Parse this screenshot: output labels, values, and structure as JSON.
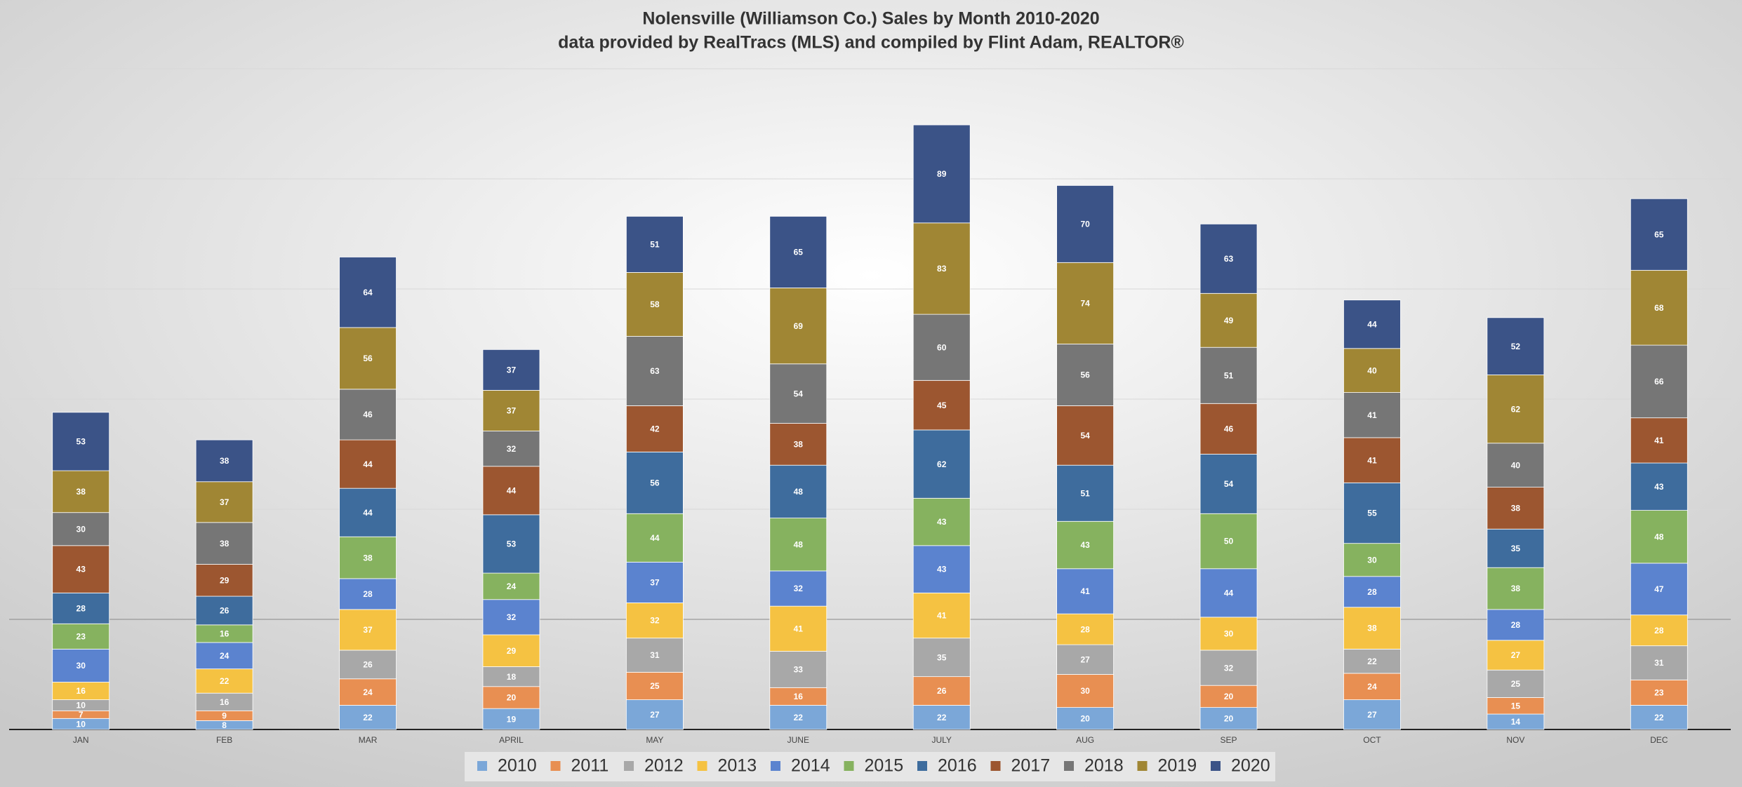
{
  "chart_data": {
    "type": "stacked_bar",
    "title": "Nolensville (Williamson Co.) Sales by Month 2010-2020",
    "subtitle": "data provided by RealTracs (MLS) and compiled by Flint Adam, REALTOR®",
    "categories": [
      "JAN",
      "FEB",
      "MAR",
      "APRIL",
      "MAY",
      "JUNE",
      "JULY",
      "AUG",
      "SEP",
      "OCT",
      "NOV",
      "DEC"
    ],
    "series": [
      {
        "name": "2010",
        "color": "#7ba7d8",
        "values": [
          10,
          8,
          22,
          19,
          27,
          22,
          22,
          20,
          20,
          27,
          14,
          22
        ]
      },
      {
        "name": "2011",
        "color": "#e88f52",
        "values": [
          7,
          9,
          24,
          20,
          25,
          16,
          26,
          30,
          20,
          24,
          15,
          23
        ]
      },
      {
        "name": "2012",
        "color": "#a8a8a8",
        "values": [
          10,
          16,
          26,
          18,
          31,
          33,
          35,
          27,
          32,
          22,
          25,
          31
        ]
      },
      {
        "name": "2013",
        "color": "#f5c242",
        "values": [
          16,
          22,
          37,
          29,
          32,
          41,
          41,
          28,
          30,
          38,
          27,
          28
        ]
      },
      {
        "name": "2014",
        "color": "#5b83cf",
        "values": [
          30,
          24,
          28,
          32,
          37,
          32,
          43,
          41,
          44,
          28,
          28,
          47
        ]
      },
      {
        "name": "2015",
        "color": "#86b25f",
        "values": [
          23,
          16,
          38,
          24,
          44,
          48,
          43,
          43,
          50,
          30,
          38,
          48
        ]
      },
      {
        "name": "2016",
        "color": "#3e6c9d",
        "values": [
          28,
          26,
          44,
          53,
          56,
          48,
          62,
          51,
          54,
          55,
          35,
          43
        ]
      },
      {
        "name": "2017",
        "color": "#9c5630",
        "values": [
          43,
          29,
          44,
          44,
          42,
          38,
          45,
          54,
          46,
          41,
          38,
          41
        ]
      },
      {
        "name": "2018",
        "color": "#767676",
        "values": [
          30,
          38,
          46,
          32,
          63,
          54,
          60,
          56,
          51,
          41,
          40,
          66
        ]
      },
      {
        "name": "2019",
        "color": "#a08634",
        "values": [
          38,
          37,
          56,
          37,
          58,
          69,
          83,
          74,
          49,
          40,
          62,
          68
        ]
      },
      {
        "name": "2020",
        "color": "#3b5387",
        "values": [
          53,
          38,
          64,
          37,
          51,
          65,
          89,
          70,
          63,
          44,
          52,
          65
        ]
      }
    ],
    "ylim": [
      0,
      600
    ],
    "yticks": [
      0,
      100,
      200,
      300,
      400,
      500,
      600
    ],
    "ytick_labels": false,
    "grid": true
  }
}
